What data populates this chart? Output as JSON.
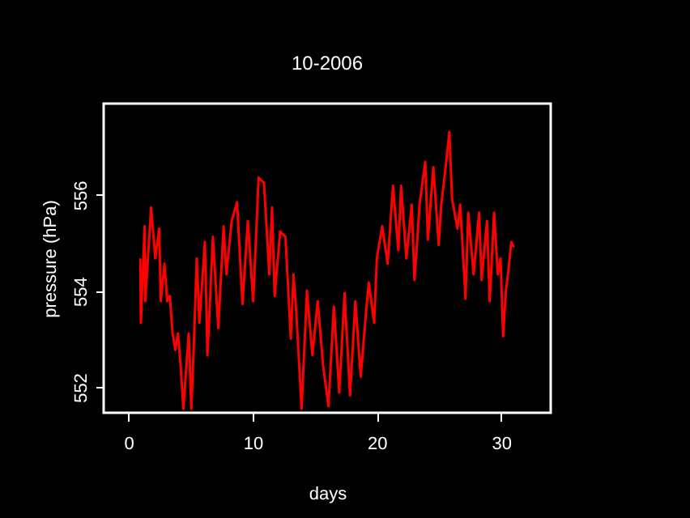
{
  "chart_data": {
    "type": "line",
    "title": "10-2006",
    "xlabel": "days",
    "ylabel": "pressure (hPa)",
    "xlim": [
      -2,
      34
    ],
    "xticks": [
      0,
      10,
      20,
      30
    ],
    "ylim": [
      551.47,
      557.9
    ],
    "yticks": [
      552,
      554,
      556
    ],
    "grid": false,
    "marker": "none",
    "line_style": "solid",
    "x": [
      0.95,
      1.0,
      1.3,
      1.35,
      1.82,
      2.16,
      2.47,
      2.6,
      2.9,
      3.12,
      3.33,
      3.55,
      3.77,
      3.98,
      4.2,
      4.42,
      4.63,
      4.85,
      5.06,
      5.28,
      5.5,
      5.71,
      6.15,
      6.36,
      6.8,
      7.23,
      7.66,
      7.88,
      8.31,
      8.74,
      9.18,
      9.61,
      10.04,
      10.48,
      10.91,
      11.34,
      11.56,
      11.77,
      12.21,
      12.64,
      13.07,
      13.29,
      13.51,
      13.94,
      14.37,
      14.81,
      15.24,
      15.67,
      16.1,
      16.54,
      16.97,
      17.4,
      17.84,
      18.27,
      18.7,
      19.13,
      19.35,
      19.78,
      20.0,
      20.43,
      20.87,
      21.3,
      21.73,
      21.95,
      22.38,
      22.81,
      23.03,
      23.46,
      23.9,
      24.11,
      24.55,
      24.98,
      25.19,
      25.54,
      25.84,
      26.06,
      26.49,
      26.71,
      27.14,
      27.36,
      27.79,
      28.23,
      28.44,
      28.87,
      29.09,
      29.44,
      29.74,
      29.96,
      30.17,
      30.39,
      30.61,
      30.82,
      31.04
    ],
    "series": [
      {
        "color": "#ff0000",
        "values": [
          554.68,
          553.34,
          555.35,
          553.79,
          555.74,
          554.68,
          555.3,
          553.79,
          554.57,
          553.79,
          553.9,
          553.12,
          552.78,
          553.12,
          552.45,
          551.55,
          552.34,
          553.12,
          551.55,
          553.01,
          554.68,
          553.34,
          555.02,
          552.67,
          555.13,
          553.23,
          555.35,
          554.35,
          555.46,
          555.85,
          553.73,
          555.46,
          553.79,
          556.36,
          556.25,
          554.35,
          555.74,
          553.9,
          555.24,
          555.13,
          553.01,
          554.35,
          553.56,
          551.55,
          554.01,
          552.67,
          553.79,
          552.45,
          551.61,
          553.68,
          551.89,
          553.96,
          551.83,
          553.79,
          552.22,
          553.56,
          554.18,
          553.34,
          554.68,
          555.35,
          554.57,
          556.19,
          554.85,
          556.19,
          554.68,
          555.8,
          554.23,
          555.85,
          556.69,
          555.07,
          556.58,
          554.96,
          555.8,
          556.58,
          557.31,
          555.91,
          555.3,
          555.8,
          553.84,
          555.63,
          554.35,
          555.63,
          554.23,
          555.46,
          553.79,
          555.63,
          554.35,
          554.68,
          553.06,
          554.01,
          554.46,
          555.02,
          554.91
        ]
      }
    ]
  }
}
